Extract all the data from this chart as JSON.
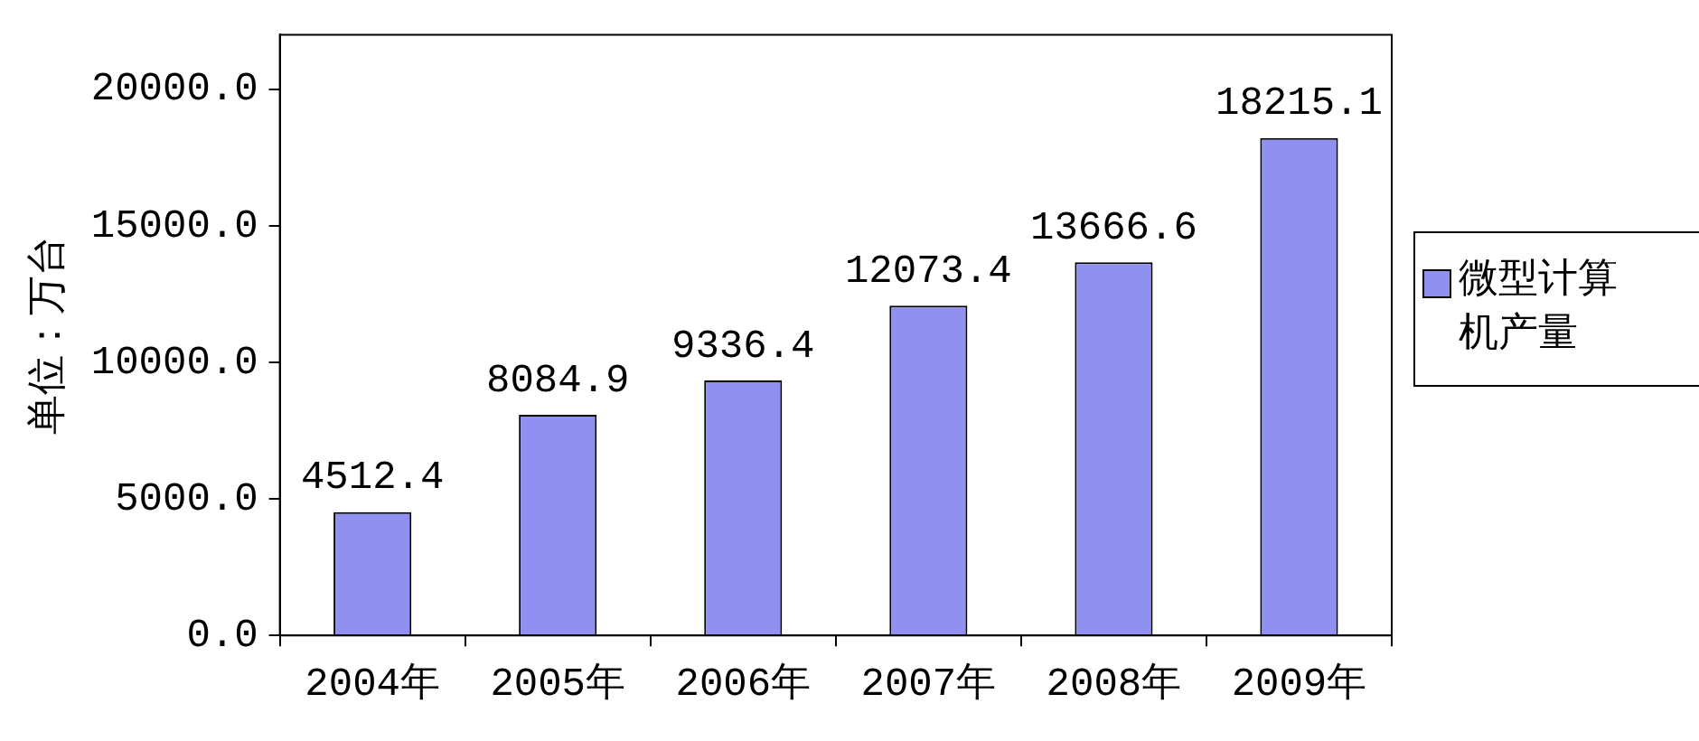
{
  "chart_data": {
    "type": "bar",
    "ylabel": "单位：万台",
    "categories": [
      "2004年",
      "2005年",
      "2006年",
      "2007年",
      "2008年",
      "2009年"
    ],
    "series": [
      {
        "name": "微型计算机产量",
        "color": "#9090f0",
        "values": [
          4512.4,
          8084.9,
          9336.4,
          12073.4,
          13666.6,
          18215.1
        ]
      }
    ],
    "ylim": [
      0,
      22000
    ],
    "yticks": [
      {
        "value": 0,
        "label": "0.0"
      },
      {
        "value": 5000,
        "label": "5000.0"
      },
      {
        "value": 10000,
        "label": "10000.0"
      },
      {
        "value": 15000,
        "label": "15000.0"
      },
      {
        "value": 20000,
        "label": "20000.0"
      }
    ],
    "data_labels": true,
    "grid": false,
    "legend": "right"
  }
}
